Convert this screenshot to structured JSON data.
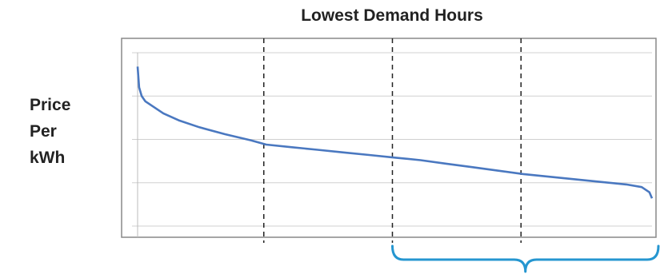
{
  "chart_data": {
    "type": "line",
    "title": "Lowest Demand Hours",
    "ylabel_lines": [
      "Price",
      "Per",
      "kWh"
    ],
    "xlabel": "",
    "xlim": [
      0,
      100
    ],
    "ylim": [
      0,
      100
    ],
    "grid": true,
    "y_gridlines": [
      0,
      25,
      50,
      75,
      100
    ],
    "x_dividers": [
      25,
      50,
      75
    ],
    "bracket_range": [
      50,
      100
    ],
    "series": [
      {
        "color": "#4a78c0",
        "points": [
          [
            0,
            92
          ],
          [
            0.3,
            80
          ],
          [
            0.8,
            75
          ],
          [
            1.5,
            72
          ],
          [
            3,
            69
          ],
          [
            5,
            65
          ],
          [
            8,
            61
          ],
          [
            12,
            57
          ],
          [
            17,
            53
          ],
          [
            22,
            49.5
          ],
          [
            25,
            47
          ],
          [
            30,
            45.5
          ],
          [
            35,
            44
          ],
          [
            40,
            42.5
          ],
          [
            45,
            41
          ],
          [
            50,
            39.5
          ],
          [
            55,
            38
          ],
          [
            60,
            36
          ],
          [
            65,
            34
          ],
          [
            70,
            32
          ],
          [
            75,
            30
          ],
          [
            80,
            28.5
          ],
          [
            85,
            27
          ],
          [
            90,
            25.5
          ],
          [
            95,
            24
          ],
          [
            98,
            22.5
          ],
          [
            99.5,
            19.5
          ],
          [
            100,
            16
          ]
        ]
      }
    ]
  }
}
